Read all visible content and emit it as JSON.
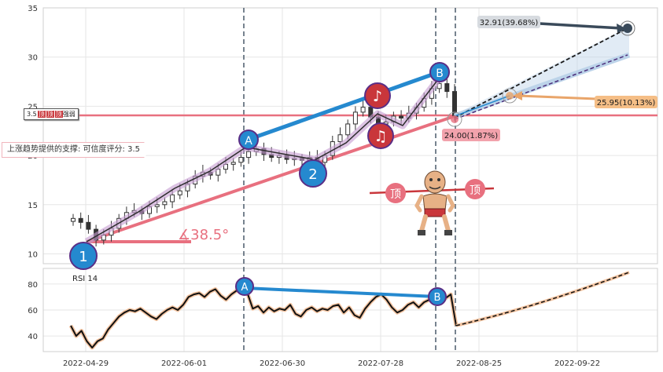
{
  "chart_data": [
    {
      "type": "candlestick",
      "x_ticks": [
        "2022-04-29",
        "2022-06-01",
        "2022-06-30",
        "2022-07-28",
        "2022-08-25",
        "2022-09-22"
      ],
      "ylim": [
        9,
        35
      ],
      "y_ticks": [
        10,
        15,
        20,
        25,
        30,
        35
      ],
      "grid": true,
      "close_approx": [
        13.6,
        13.2,
        12.5,
        11.4,
        11.9,
        12.6,
        13.6,
        14.2,
        14.4,
        14.1,
        14.8,
        15.0,
        15.3,
        16.0,
        16.4,
        17.1,
        17.9,
        18.3,
        18.0,
        18.6,
        19.1,
        19.3,
        19.8,
        20.4,
        20.7,
        20.1,
        19.8,
        20.0,
        19.6,
        19.7,
        19.5,
        19.8,
        19.3,
        20.0,
        21.4,
        22.1,
        23.2,
        24.4,
        24.9,
        23.9,
        23.2,
        23.4,
        24.0,
        23.8,
        24.3,
        24.9,
        25.8,
        26.8,
        27.3,
        26.5,
        24.0
      ],
      "support_level": 24.0,
      "pattern_points": [
        {
          "label": "1",
          "date": "2022-05-06",
          "price": 11.2
        },
        {
          "label": "A",
          "date": "2022-06-17",
          "price": 20.6
        },
        {
          "label": "2",
          "date": "2022-07-07",
          "price": 19.5
        },
        {
          "label": "B",
          "date": "2022-08-15",
          "price": 27.6
        }
      ],
      "projections": [
        {
          "label": "32.91(39.68%)",
          "price": 32.91
        },
        {
          "label": "25.95(10.13%)",
          "price": 25.95
        },
        {
          "label": "24.00(1.87%)",
          "price": 24.0
        }
      ],
      "angle_label": "∡38.5°",
      "support_label": "上涨趋势提供的支撑: 可信度评分: 3.5",
      "mini_label": {
        "score": "3.5",
        "badges": [
          "顶",
          "顶",
          "顶"
        ],
        "tail": "强弱"
      },
      "top_pattern_label": "顶",
      "music_icons": [
        "♪",
        "♫"
      ]
    },
    {
      "type": "line",
      "title": "RSI 14",
      "ylim": [
        28,
        92
      ],
      "y_ticks": [
        40,
        60,
        80
      ],
      "values_approx": [
        48,
        40,
        44,
        36,
        31,
        36,
        38,
        45,
        50,
        55,
        58,
        60,
        59,
        61,
        58,
        55,
        53,
        57,
        60,
        62,
        60,
        64,
        70,
        72,
        73,
        70,
        74,
        76,
        71,
        68,
        72,
        75,
        77,
        73,
        61,
        63,
        58,
        62,
        59,
        61,
        60,
        64,
        57,
        55,
        60,
        62,
        59,
        61,
        60,
        63,
        64,
        58,
        62,
        56,
        54,
        61,
        66,
        70,
        72,
        68,
        62,
        58,
        60,
        64,
        66,
        62,
        66,
        68,
        71,
        66,
        69,
        72,
        48
      ],
      "projection_end": 89,
      "divergence_points": [
        {
          "label": "A",
          "value": 79
        },
        {
          "label": "B",
          "value": 71
        }
      ]
    }
  ]
}
